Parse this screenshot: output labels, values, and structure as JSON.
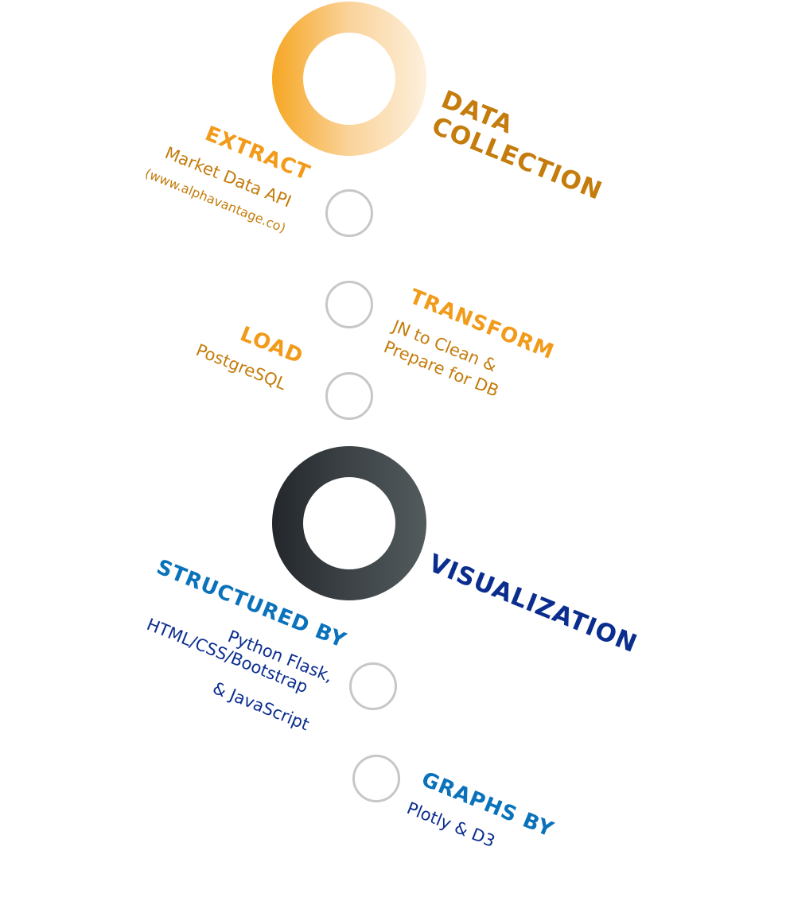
{
  "collection": {
    "title_line1": "DATA",
    "title_line2": "COLLECTION",
    "extract": {
      "title": "EXTRACT",
      "desc": "Market Data API",
      "source": "(www.alphavantage.co)"
    },
    "transform": {
      "title": "TRANSFORM",
      "desc_line1": "JN to Clean &",
      "desc_line2": "Prepare for DB"
    },
    "load": {
      "title": "LOAD",
      "desc": "PostgreSQL"
    }
  },
  "visualization": {
    "title": "VISUALIZATION",
    "structured": {
      "title": "STRUCTURED BY",
      "desc_line1": "Python Flask,",
      "desc_line2": "HTML/CSS/Bootstrap",
      "desc_line3": "& JavaScript"
    },
    "graphs": {
      "title": "GRAPHS BY",
      "desc": "Plotly & D3"
    }
  },
  "colors": {
    "collection_ring": "#f6a623",
    "visualization_ring": "#2f3538",
    "collection_title": "#c47c0c",
    "collection_step": "#f29a1a",
    "visualization_title": "#0b2e8e",
    "visualization_step": "#0a72bb",
    "step_ring": "#c7c7c7"
  }
}
